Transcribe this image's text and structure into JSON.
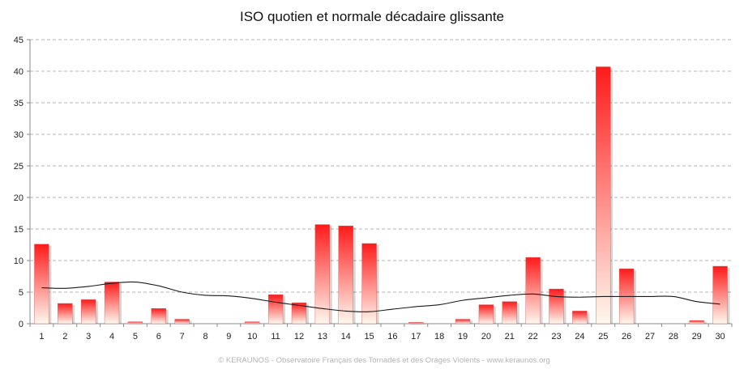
{
  "chart_data": {
    "type": "bar",
    "title": "ISO quotien et normale décadaire glissante",
    "credit": "© KERAUNOS - Observatoire Français des Tornades et des Orages Violents - www.keraunos.org",
    "xlabel": "",
    "ylabel": "",
    "categories": [
      "1",
      "2",
      "3",
      "4",
      "5",
      "6",
      "7",
      "8",
      "9",
      "10",
      "11",
      "12",
      "13",
      "14",
      "15",
      "16",
      "17",
      "18",
      "19",
      "20",
      "21",
      "22",
      "23",
      "24",
      "25",
      "26",
      "27",
      "28",
      "29",
      "30"
    ],
    "ylim": [
      0,
      45
    ],
    "yticks": [
      "0",
      "5",
      "10",
      "15",
      "20",
      "25",
      "30",
      "35",
      "40",
      "45"
    ],
    "grid": true,
    "series": [
      {
        "kind": "bar",
        "values": [
          12.6,
          3.2,
          3.8,
          6.6,
          0.3,
          2.4,
          0.7,
          0,
          0,
          0.3,
          4.6,
          3.3,
          15.7,
          15.5,
          12.7,
          0,
          0.2,
          0,
          0.7,
          3.0,
          3.5,
          10.5,
          5.5,
          2.0,
          40.7,
          8.7,
          0,
          0,
          0.5,
          9.1
        ],
        "color_top": "#ff1a1a",
        "color_bottom": "#fff8ee"
      },
      {
        "kind": "line",
        "values": [
          5.7,
          5.6,
          5.9,
          6.4,
          6.6,
          6.0,
          5.0,
          4.5,
          4.4,
          4.0,
          3.4,
          2.9,
          2.4,
          2.0,
          1.9,
          2.3,
          2.7,
          3.0,
          3.7,
          4.1,
          4.5,
          4.7,
          4.3,
          4.2,
          4.3,
          4.3,
          4.3,
          4.3,
          3.5,
          3.1
        ],
        "color": "#1a1a1a"
      }
    ]
  }
}
